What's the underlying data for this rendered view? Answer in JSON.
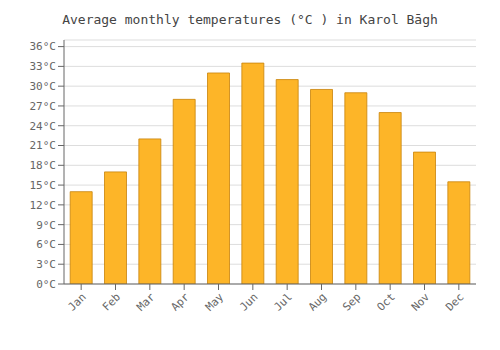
{
  "chart_data": {
    "type": "bar",
    "title": "Average monthly temperatures (°C ) in Karol Bāgh",
    "categories": [
      "Jan",
      "Feb",
      "Mar",
      "Apr",
      "May",
      "Jun",
      "Jul",
      "Aug",
      "Sep",
      "Oct",
      "Nov",
      "Dec"
    ],
    "values": [
      14,
      17,
      22,
      28,
      32,
      33.5,
      31,
      29.5,
      29,
      26,
      20,
      15.5
    ],
    "color": "#FDB528",
    "ylim": [
      0,
      37
    ],
    "yticks": [
      {
        "value": 0,
        "label": "0°C"
      },
      {
        "value": 3,
        "label": "3°C"
      },
      {
        "value": 6,
        "label": "6°C"
      },
      {
        "value": 9,
        "label": "9°C"
      },
      {
        "value": 12,
        "label": "12°C"
      },
      {
        "value": 15,
        "label": "15°C"
      },
      {
        "value": 18,
        "label": "18°C"
      },
      {
        "value": 21,
        "label": "21°C"
      },
      {
        "value": 24,
        "label": "24°C"
      },
      {
        "value": 27,
        "label": "27°C"
      },
      {
        "value": 30,
        "label": "30°C"
      },
      {
        "value": 33,
        "label": "33°C"
      },
      {
        "value": 36,
        "label": "36°C"
      }
    ],
    "grid": true
  }
}
